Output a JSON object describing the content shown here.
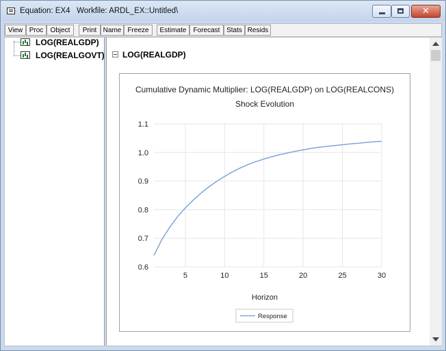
{
  "window": {
    "title": "Equation: EX4   Workfile: ARDL_EX::Untitled\\",
    "controls": [
      "minimize",
      "maximize",
      "close"
    ]
  },
  "toolbar": {
    "buttons": [
      "View",
      "Proc",
      "Object",
      "Print",
      "Name",
      "Freeze",
      "Estimate",
      "Forecast",
      "Stats",
      "Resids"
    ]
  },
  "tree": {
    "items": [
      "LOG(REALGDP)",
      "LOG(REALGOVT)"
    ]
  },
  "section": {
    "title": "LOG(REALGDP)"
  },
  "chart_data": {
    "type": "line",
    "title": "Cumulative Dynamic Multiplier: LOG(REALGDP) on LOG(REALCONS)",
    "subtitle": "Shock Evolution",
    "xlabel": "Horizon",
    "ylabel": "",
    "xlim": [
      1,
      30
    ],
    "ylim": [
      0.6,
      1.1
    ],
    "xticks": [
      5,
      10,
      15,
      20,
      25,
      30
    ],
    "yticks": [
      0.6,
      0.7,
      0.8,
      0.9,
      1.0,
      1.1
    ],
    "ytick_labels": [
      "0.6",
      "0.7",
      "0.8",
      "0.9",
      "1.0",
      "1.1"
    ],
    "grid": true,
    "legend_position": "bottom-center",
    "series": [
      {
        "name": "Response",
        "color": "#7ea6d8",
        "x": [
          1,
          2,
          3,
          4,
          5,
          6,
          7,
          8,
          9,
          10,
          11,
          12,
          13,
          14,
          15,
          16,
          17,
          18,
          19,
          20,
          21,
          22,
          23,
          24,
          25,
          26,
          27,
          28,
          29,
          30
        ],
        "values": [
          0.64,
          0.695,
          0.738,
          0.775,
          0.806,
          0.833,
          0.858,
          0.88,
          0.899,
          0.916,
          0.932,
          0.946,
          0.958,
          0.968,
          0.977,
          0.985,
          0.992,
          0.998,
          1.004,
          1.009,
          1.014,
          1.018,
          1.021,
          1.024,
          1.027,
          1.03,
          1.032,
          1.035,
          1.037,
          1.039
        ]
      }
    ]
  }
}
